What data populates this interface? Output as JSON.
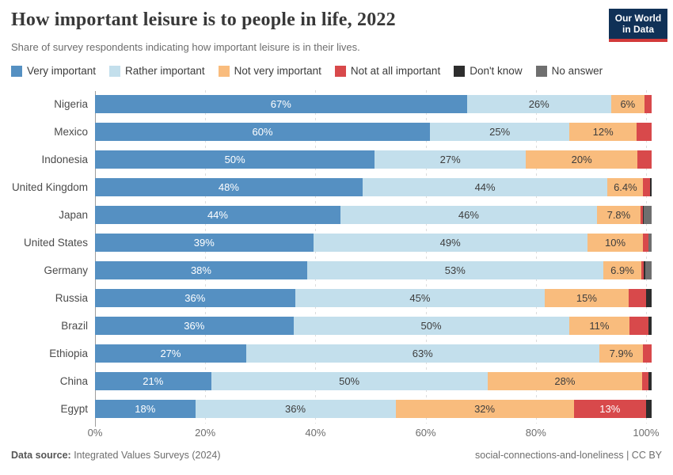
{
  "header": {
    "title": "How important leisure is to people in life, 2022",
    "subtitle": "Share of survey respondents indicating how important leisure is in their lives.",
    "logo": {
      "line1": "Our World",
      "line2": "in Data"
    }
  },
  "colors": {
    "logo_bg": "#103157",
    "logo_stripe": "#d23a3a",
    "series": [
      "#5590c2",
      "#c3dfec",
      "#f9bc7d",
      "#d8494b",
      "#2d2d2d",
      "#6f6f6f"
    ],
    "segment_label": [
      "#ffffff",
      "#3d3d3d",
      "#3d3d3d",
      "#ffffff",
      "#ffffff",
      "#ffffff"
    ],
    "gridline": "#dcdcdc",
    "axis": "#9e9e9e"
  },
  "legend": [
    {
      "label": "Very important"
    },
    {
      "label": "Rather important"
    },
    {
      "label": "Not very important"
    },
    {
      "label": "Not at all important"
    },
    {
      "label": "Don't know"
    },
    {
      "label": "No answer"
    }
  ],
  "chart_data": {
    "type": "bar",
    "orientation": "horizontal",
    "stacked": true,
    "unit": "%",
    "title": "How important leisure is to people in life, 2022",
    "series": [
      "Very important",
      "Rather important",
      "Not very important",
      "Not at all important",
      "Don't know",
      "No answer"
    ],
    "x_ticks": [
      "0%",
      "20%",
      "40%",
      "60%",
      "80%",
      "100%"
    ],
    "x_tick_values": [
      0,
      20,
      40,
      60,
      80,
      100
    ],
    "xlim": [
      0,
      100
    ],
    "grid": "dashed-vertical",
    "legend_position": "top",
    "rows": [
      {
        "country": "Nigeria",
        "values": [
          67,
          26,
          6,
          1.3,
          0,
          0
        ],
        "labels": [
          "67%",
          "26%",
          "6%",
          "",
          "",
          ""
        ]
      },
      {
        "country": "Mexico",
        "values": [
          60,
          25,
          12,
          2.7,
          0,
          0
        ],
        "labels": [
          "60%",
          "25%",
          "12%",
          "",
          "",
          ""
        ]
      },
      {
        "country": "Indonesia",
        "values": [
          50,
          27,
          20,
          2.5,
          0,
          0
        ],
        "labels": [
          "50%",
          "27%",
          "20%",
          "",
          "",
          ""
        ]
      },
      {
        "country": "United Kingdom",
        "values": [
          48,
          44,
          6.4,
          1.2,
          0.3,
          0
        ],
        "labels": [
          "48%",
          "44%",
          "6.4%",
          "",
          "",
          ""
        ]
      },
      {
        "country": "Japan",
        "values": [
          44,
          46,
          7.8,
          0.4,
          0.2,
          1.4
        ],
        "labels": [
          "44%",
          "46%",
          "7.8%",
          "",
          "",
          ""
        ]
      },
      {
        "country": "United States",
        "values": [
          39,
          49,
          10,
          0.9,
          0,
          0.6
        ],
        "labels": [
          "39%",
          "49%",
          "10%",
          "",
          "",
          ""
        ]
      },
      {
        "country": "Germany",
        "values": [
          38,
          53,
          6.9,
          0.4,
          0.2,
          1.2
        ],
        "labels": [
          "38%",
          "53%",
          "6.9%",
          "",
          "",
          ""
        ]
      },
      {
        "country": "Russia",
        "values": [
          36,
          45,
          15,
          3.2,
          1.0,
          0
        ],
        "labels": [
          "36%",
          "45%",
          "15%",
          "",
          "",
          ""
        ]
      },
      {
        "country": "Brazil",
        "values": [
          36,
          50,
          11,
          3.4,
          0.6,
          0
        ],
        "labels": [
          "36%",
          "50%",
          "11%",
          "",
          "",
          ""
        ]
      },
      {
        "country": "Ethiopia",
        "values": [
          27,
          63,
          7.9,
          1.5,
          0,
          0
        ],
        "labels": [
          "27%",
          "63%",
          "7.9%",
          "",
          "",
          ""
        ]
      },
      {
        "country": "China",
        "values": [
          21,
          50,
          28,
          1.2,
          0.5,
          0
        ],
        "labels": [
          "21%",
          "50%",
          "28%",
          "",
          "",
          ""
        ]
      },
      {
        "country": "Egypt",
        "values": [
          18,
          36,
          32,
          13,
          1.0,
          0
        ],
        "labels": [
          "18%",
          "36%",
          "32%",
          "13%",
          "",
          ""
        ]
      }
    ]
  },
  "footer": {
    "datasource_label": "Data source:",
    "datasource_value": " Integrated Values Surveys (2024)",
    "license": "social-connections-and-loneliness | CC BY"
  }
}
